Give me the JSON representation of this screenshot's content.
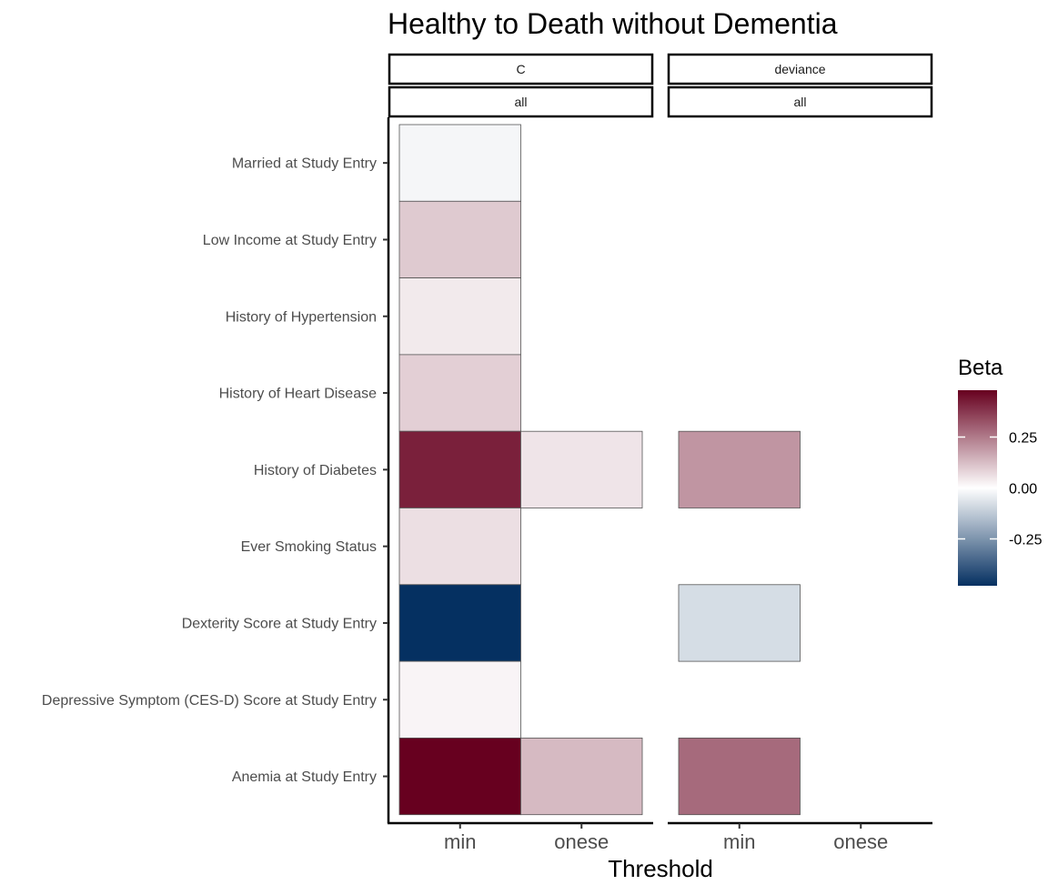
{
  "chart_data": {
    "type": "heatmap",
    "title": "Healthy to Death without Dementia",
    "xlabel": "Threshold",
    "ylabel": "",
    "categories_x": [
      "min",
      "onese"
    ],
    "categories_y": [
      "Married at Study Entry",
      "Low Income at Study Entry",
      "History of Hypertension",
      "History of Heart Disease",
      "History of Diabetes",
      "Ever Smoking Status",
      "Dexterity Score at Study Entry",
      "Depressive Symptom (CES-D) Score at Study Entry",
      "Anemia at Study Entry"
    ],
    "facets": [
      {
        "strip_top": "C",
        "strip_bottom": "all",
        "cells": [
          {
            "x": "min",
            "y": "Married at Study Entry",
            "value": -0.02
          },
          {
            "x": "min",
            "y": "Low Income at Study Entry",
            "value": 0.1
          },
          {
            "x": "min",
            "y": "History of Hypertension",
            "value": 0.04
          },
          {
            "x": "min",
            "y": "History of Heart Disease",
            "value": 0.09
          },
          {
            "x": "min",
            "y": "History of Diabetes",
            "value": 0.42
          },
          {
            "x": "onese",
            "y": "History of Diabetes",
            "value": 0.05
          },
          {
            "x": "min",
            "y": "Ever Smoking Status",
            "value": 0.06
          },
          {
            "x": "min",
            "y": "Dexterity Score at Study Entry",
            "value": -0.48
          },
          {
            "x": "min",
            "y": "Depressive Symptom (CES-D) Score at Study Entry",
            "value": 0.02
          },
          {
            "x": "min",
            "y": "Anemia at Study Entry",
            "value": 0.48
          },
          {
            "x": "onese",
            "y": "Anemia at Study Entry",
            "value": 0.13
          }
        ]
      },
      {
        "strip_top": "deviance",
        "strip_bottom": "all",
        "cells": [
          {
            "x": "min",
            "y": "History of Diabetes",
            "value": 0.2
          },
          {
            "x": "min",
            "y": "Dexterity Score at Study Entry",
            "value": -0.08
          },
          {
            "x": "min",
            "y": "Anemia at Study Entry",
            "value": 0.28
          }
        ]
      }
    ],
    "legend": {
      "title": "Beta",
      "position": "right",
      "range": [
        -0.48,
        0.48
      ],
      "ticks": [
        0.25,
        0.0,
        -0.25
      ],
      "tick_labels": [
        "0.25",
        "0.00",
        "-0.25"
      ]
    },
    "colors": {
      "low": "#053061",
      "mid": "#ffffff",
      "high": "#67001f"
    }
  }
}
